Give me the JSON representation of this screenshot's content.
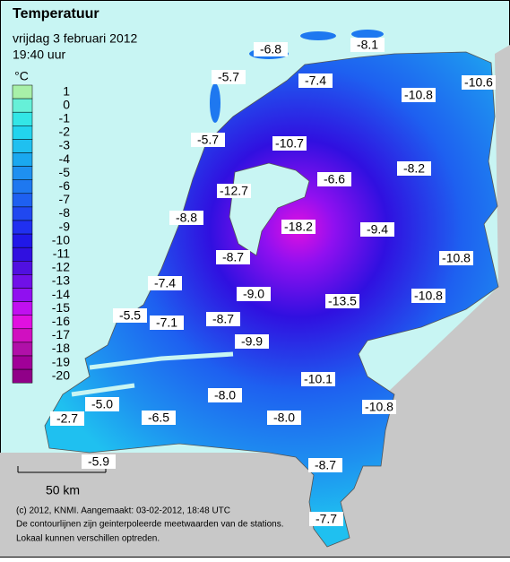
{
  "header": {
    "title": "Temperatuur",
    "date": "vrijdag 3 februari 2012",
    "time": "19:40 uur"
  },
  "legend": {
    "unit": "°C",
    "ticks": [
      1,
      0,
      -1,
      -2,
      -3,
      -4,
      -5,
      -6,
      -7,
      -8,
      -9,
      -10,
      -11,
      -12,
      -13,
      -14,
      -15,
      -16,
      -17,
      -18,
      -19,
      -20
    ],
    "colors": [
      "#a8f0a8",
      "#66f0d8",
      "#33e6e6",
      "#22d4ee",
      "#1fc0f0",
      "#1aa8f0",
      "#1e90f0",
      "#1e78f0",
      "#1e60f0",
      "#2048f0",
      "#2030f0",
      "#2018e8",
      "#3010e0",
      "#5010e0",
      "#7010e8",
      "#9010f0",
      "#c010f0",
      "#e010e0",
      "#d010c0",
      "#b010a8",
      "#a00098",
      "#900088"
    ]
  },
  "stations": [
    -6.8,
    -8.1,
    -5.7,
    -7.4,
    -10.8,
    -10.6,
    -5.7,
    -10.7,
    -6.6,
    -8.2,
    -12.7,
    -8.8,
    -18.2,
    -9.4,
    -8.7,
    -10.8,
    -7.4,
    {
      "value": -9.0,
      "label": "-9.0"
    },
    -13.5,
    -10.8,
    -5.5,
    -7.1,
    -8.7,
    -9.9,
    -10.1,
    {
      "value": -8.0,
      "label": "-8.0"
    },
    -10.8,
    {
      "value": -5.0,
      "label": "-5.0"
    },
    -6.5,
    -2.7,
    {
      "value": -8.0,
      "label": "-8.0"
    },
    -5.9,
    -8.7,
    -7.7
  ],
  "scale": "50 km",
  "footer": [
    "(c) 2012, KNMI. Aangemaakt: 03-02-2012, 18:48 UTC",
    "De contourlijnen zijn geinterpoleerde meetwaarden van de stations.",
    "Lokaal kunnen verschillen optreden."
  ]
}
